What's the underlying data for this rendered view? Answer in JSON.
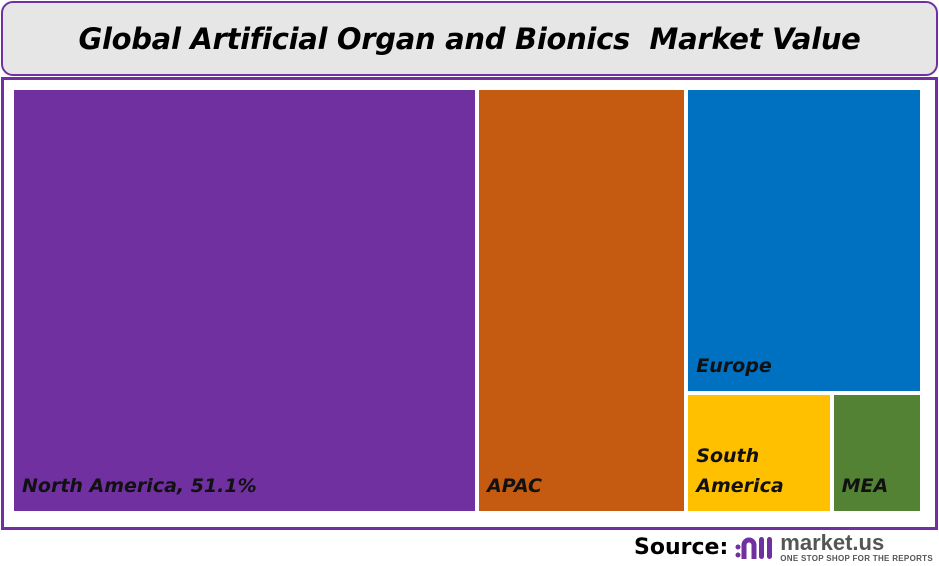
{
  "title": "Global Artificial Organ and Bionics  Market Value",
  "source": {
    "label": "Source:",
    "logo_text": "market.us",
    "logo_tagline": "ONE STOP SHOP FOR THE REPORTS"
  },
  "chart_data": {
    "type": "treemap",
    "title": "Global Artificial Organ and Bionics  Market Value",
    "unit": "% share",
    "items": [
      {
        "name": "North America",
        "label": "North America, 51.1%",
        "value": 51.1,
        "color": "#7030a0"
      },
      {
        "name": "APAC",
        "label": "APAC",
        "value": 23.0,
        "color": "#c55a11"
      },
      {
        "name": "Europe",
        "label": "Europe",
        "value": 18.6,
        "color": "#0070c0"
      },
      {
        "name": "South America",
        "label": "South America",
        "value": 4.5,
        "color": "#ffc000"
      },
      {
        "name": "MEA",
        "label": "MEA",
        "value": 2.8,
        "color": "#548235"
      }
    ]
  }
}
